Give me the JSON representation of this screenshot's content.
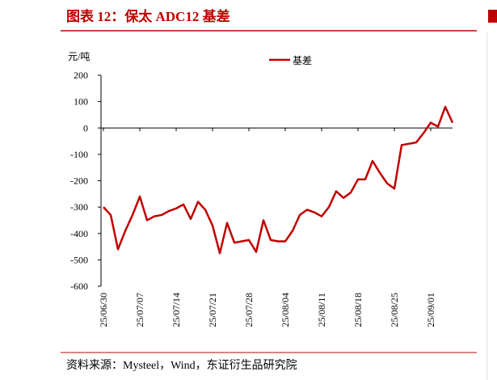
{
  "chart_data": {
    "type": "line",
    "title": "图表 12：保太 ADC12 基差",
    "y_unit": "元/吨",
    "source": "资料来源：Mysteel，Wind，东证衍生品研究院",
    "categories": [
      "25/06/30",
      null,
      null,
      null,
      null,
      "25/07/07",
      null,
      null,
      null,
      null,
      "25/07/14",
      null,
      null,
      null,
      null,
      "25/07/21",
      null,
      null,
      null,
      null,
      "25/07/28",
      null,
      null,
      null,
      null,
      "25/08/04",
      null,
      null,
      null,
      null,
      "25/08/11",
      null,
      null,
      null,
      null,
      "25/08/18",
      null,
      null,
      null,
      null,
      "25/08/25",
      null,
      null,
      null,
      null,
      "25/09/01",
      null,
      null,
      null
    ],
    "series": [
      {
        "name": "基差",
        "color": "#c00000",
        "values": [
          -300,
          -330,
          -460,
          -390,
          -330,
          -260,
          -350,
          -335,
          -330,
          -315,
          -305,
          -290,
          -345,
          -280,
          -310,
          -370,
          -475,
          -360,
          -435,
          -430,
          -425,
          -470,
          -350,
          -425,
          -430,
          -430,
          -390,
          -330,
          -310,
          -320,
          -335,
          -300,
          -240,
          -265,
          -245,
          -195,
          -195,
          -125,
          -170,
          -210,
          -230,
          -65,
          -60,
          -55,
          -20,
          20,
          5,
          80,
          20
        ]
      }
    ],
    "ylim": [
      -600,
      200
    ],
    "yticks": [
      -600,
      -500,
      -400,
      -300,
      -200,
      -100,
      0,
      100,
      200
    ],
    "legend": "top"
  }
}
